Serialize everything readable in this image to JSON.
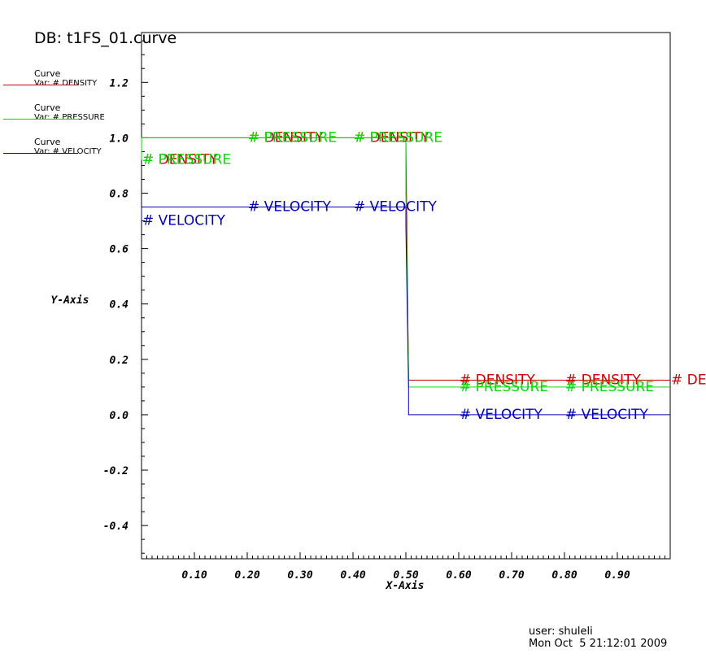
{
  "db_title": "DB: t1FS_01.curve",
  "legend": [
    {
      "type": "Curve",
      "var": "Var: # DENSITY",
      "color": "#cc0000"
    },
    {
      "type": "Curve",
      "var": "Var: # PRESSURE",
      "color": "#00dd00"
    },
    {
      "type": "Curve",
      "var": "Var: # VELOCITY",
      "color": "#0000bb"
    }
  ],
  "footer": {
    "user": "user: shuleli",
    "date": "Mon Oct  5 21:12:01 2009"
  },
  "chart_data": {
    "type": "line",
    "xlabel": "X-Axis",
    "ylabel": "Y-Axis",
    "xlim": [
      0.0,
      1.0
    ],
    "ylim": [
      -0.52,
      1.38
    ],
    "x_ticks": [
      0.1,
      0.2,
      0.3,
      0.4,
      0.5,
      0.6,
      0.7,
      0.8,
      0.9
    ],
    "x_tick_labels": [
      "0.10",
      "0.20",
      "0.30",
      "0.40",
      "0.50",
      "0.60",
      "0.70",
      "0.80",
      "0.90"
    ],
    "y_ticks": [
      -0.4,
      -0.2,
      0.0,
      0.2,
      0.4,
      0.6,
      0.8,
      1.0,
      1.2
    ],
    "y_tick_labels": [
      "-0.4",
      "-0.2",
      "0.0",
      "0.2",
      "0.4",
      "0.6",
      "0.8",
      "1.0",
      "1.2"
    ],
    "grid": false,
    "legend_position": "top-left outside",
    "series": [
      {
        "name": "# DENSITY",
        "color": "#cc0000",
        "x": [
          0.0,
          0.0,
          0.5,
          0.505,
          0.505,
          1.0
        ],
        "y": [
          0.92,
          1.0,
          1.0,
          0.125,
          0.125,
          0.125
        ],
        "labels": [
          {
            "text": "# DENSITY",
            "x": 0.0,
            "y": 0.92
          },
          {
            "text": "# DENSITY",
            "x": 0.2,
            "y": 1.0
          },
          {
            "text": "# DENSITY",
            "x": 0.4,
            "y": 1.0
          },
          {
            "text": "# DENSITY",
            "x": 0.6,
            "y": 0.125
          },
          {
            "text": "# DENSITY",
            "x": 0.8,
            "y": 0.125
          },
          {
            "text": "# DENSITY",
            "x": 1.0,
            "y": 0.125
          }
        ]
      },
      {
        "name": "# PRESSURE",
        "color": "#00dd00",
        "x": [
          0.0,
          0.0,
          0.5,
          0.5,
          0.505,
          0.505,
          1.0
        ],
        "y": [
          0.92,
          1.0,
          1.0,
          0.8,
          0.15,
          0.1,
          0.1
        ],
        "labels": [
          {
            "text": "# PRESSURE",
            "x": 0.0,
            "y": 0.92
          },
          {
            "text": "# PRESSURE",
            "x": 0.2,
            "y": 1.0
          },
          {
            "text": "# PRESSURE",
            "x": 0.4,
            "y": 1.0
          },
          {
            "text": "# PRESSURE",
            "x": 0.6,
            "y": 0.1
          },
          {
            "text": "# PRESSURE",
            "x": 0.8,
            "y": 0.1
          }
        ]
      },
      {
        "name": "# VELOCITY",
        "color": "#0000bb",
        "x": [
          0.0,
          0.0,
          0.5,
          0.5,
          0.505,
          0.505,
          1.0
        ],
        "y": [
          0.7,
          0.75,
          0.75,
          0.68,
          0.1,
          0.0,
          0.0
        ],
        "labels": [
          {
            "text": "# VELOCITY",
            "x": 0.0,
            "y": 0.7
          },
          {
            "text": "# VELOCITY",
            "x": 0.2,
            "y": 0.75
          },
          {
            "text": "# VELOCITY",
            "x": 0.4,
            "y": 0.75
          },
          {
            "text": "# VELOCITY",
            "x": 0.6,
            "y": 0.0
          },
          {
            "text": "# VELOCITY",
            "x": 0.8,
            "y": 0.0
          }
        ]
      }
    ]
  }
}
